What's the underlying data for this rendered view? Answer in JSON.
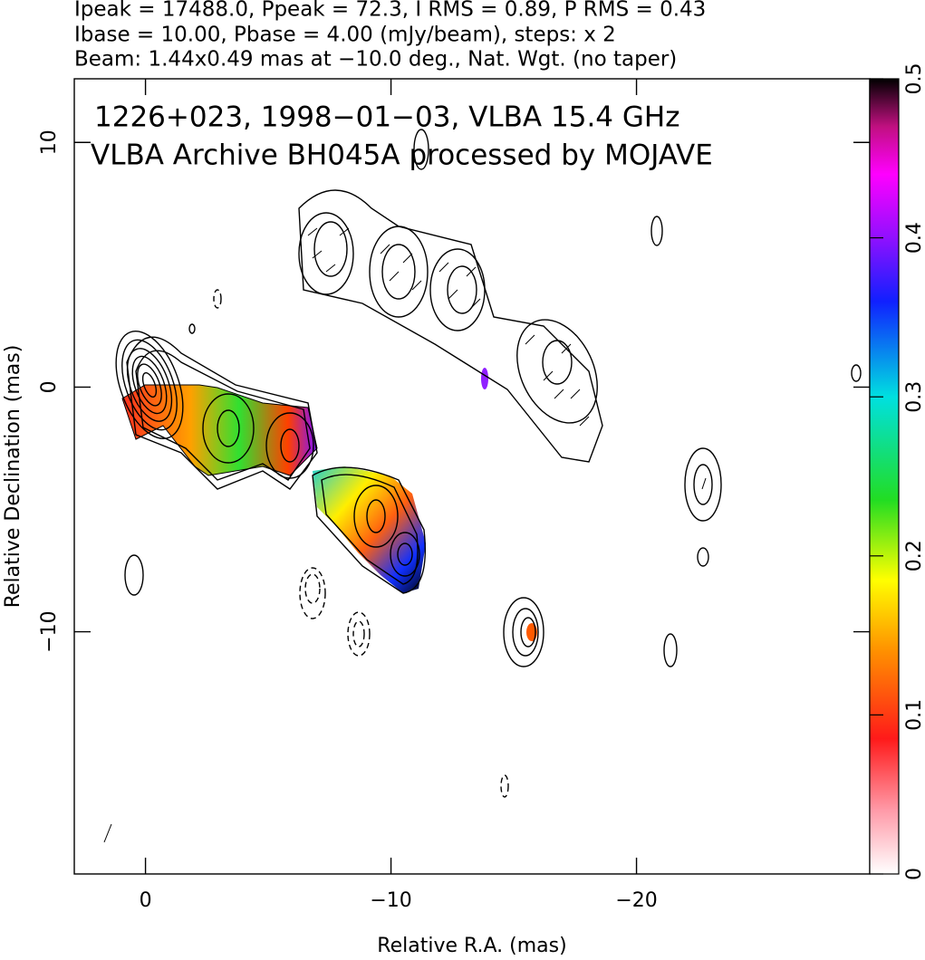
{
  "chart_data": {
    "type": "image",
    "header_lines": [
      "Ipeak = 17488.0, Ppeak = 72.3, I RMS = 0.89, P RMS = 0.43",
      "Ibase = 10.00, Pbase = 4.00 (mJy/beam), steps: x 2",
      "Beam: 1.44x0.49 mas at −10.0 deg., Nat. Wgt. (no taper)"
    ],
    "annotations": [
      "1226+023, 1998−01−03, VLBA 15.4 GHz",
      "VLBA Archive BH045A processed by MOJAVE"
    ],
    "xlabel": "Relative R.A. (mas)",
    "ylabel": "Relative Declination (mas)",
    "xlim": [
      2.9,
      -29.5
    ],
    "ylim": [
      -19.9,
      12.6
    ],
    "xticks": [
      0,
      {
        "value": -10,
        "label": "−10"
      },
      {
        "value": -20,
        "label": "−20"
      }
    ],
    "yticks": [
      {
        "value": -10,
        "label": "−10"
      },
      0,
      10
    ],
    "colorbar": {
      "lim": [
        0,
        0.5
      ],
      "ticks": [
        0,
        0.1,
        0.2,
        0.3,
        0.4,
        0.5
      ]
    }
  }
}
